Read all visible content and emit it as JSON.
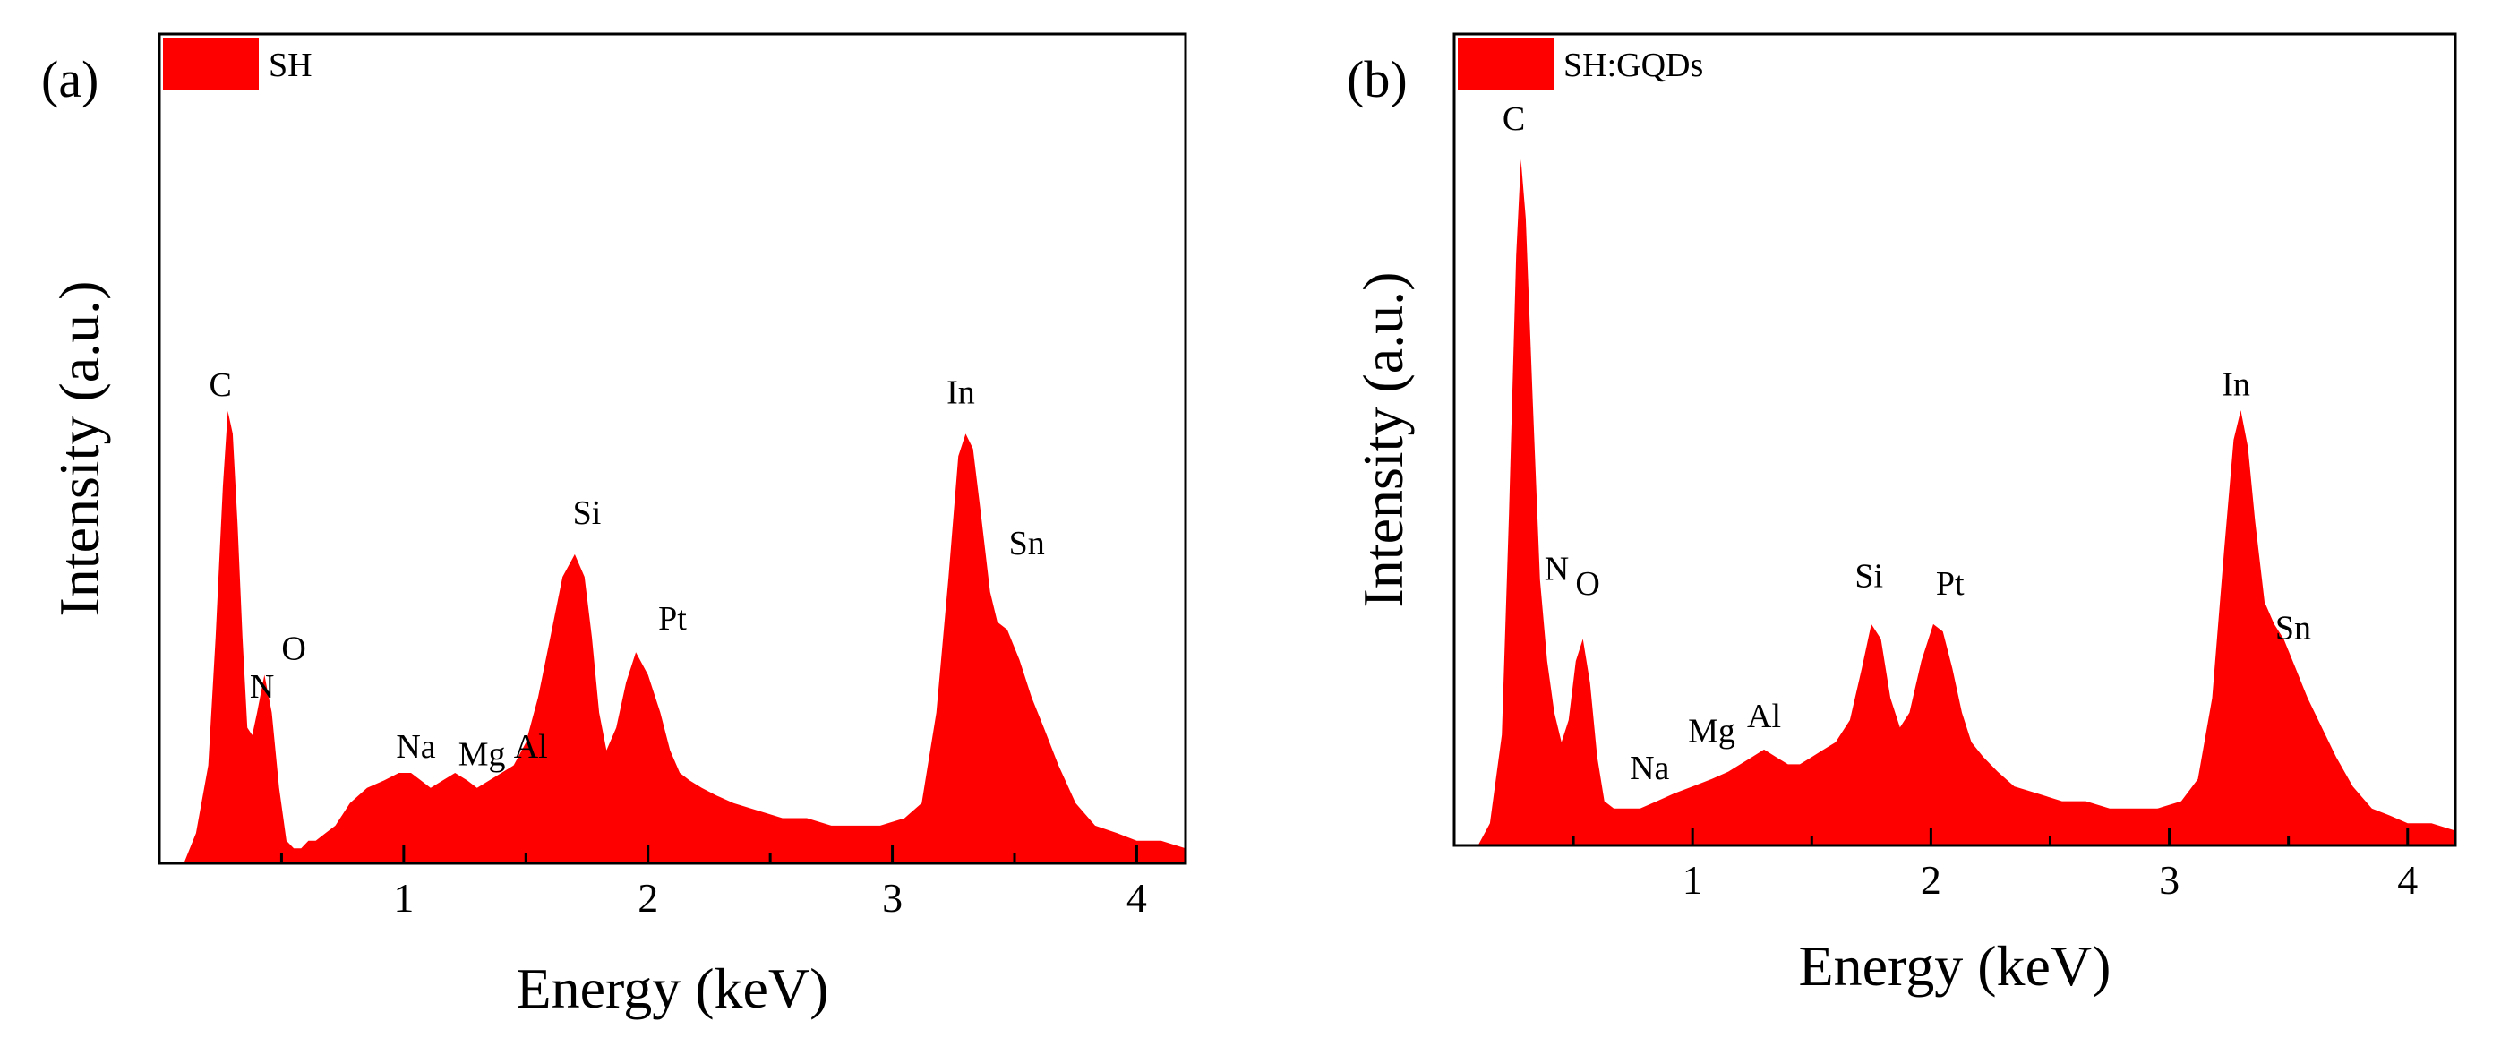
{
  "figure": {
    "colors": {
      "fill": "#ff0000",
      "axis": "#000000",
      "background": "#ffffff"
    }
  },
  "chart_data": [
    {
      "type": "area",
      "panel_label": "(a)",
      "title": "",
      "legend": {
        "label": "SH",
        "placement": "top-left"
      },
      "xlabel": "Energy (keV)",
      "ylabel": "Intensity (a.u.)",
      "xlim": [
        0.0,
        4.2
      ],
      "ylim": [
        0,
        110
      ],
      "xticks": [
        1,
        2,
        3,
        4
      ],
      "xtick_labels": [
        "1",
        "2",
        "3",
        "4"
      ],
      "yticks_visible": false,
      "grid": false,
      "series": [
        {
          "name": "SH",
          "x": [
            0.1,
            0.15,
            0.2,
            0.23,
            0.26,
            0.28,
            0.3,
            0.32,
            0.34,
            0.36,
            0.38,
            0.4,
            0.43,
            0.46,
            0.49,
            0.52,
            0.55,
            0.58,
            0.61,
            0.64,
            0.68,
            0.72,
            0.78,
            0.85,
            0.92,
            0.98,
            1.03,
            1.07,
            1.11,
            1.16,
            1.21,
            1.26,
            1.3,
            1.35,
            1.4,
            1.45,
            1.5,
            1.55,
            1.6,
            1.65,
            1.7,
            1.74,
            1.77,
            1.8,
            1.83,
            1.87,
            1.91,
            1.95,
            2.0,
            2.05,
            2.09,
            2.13,
            2.17,
            2.22,
            2.28,
            2.35,
            2.45,
            2.55,
            2.65,
            2.75,
            2.85,
            2.95,
            3.05,
            3.12,
            3.18,
            3.23,
            3.27,
            3.3,
            3.33,
            3.36,
            3.4,
            3.43,
            3.47,
            3.52,
            3.57,
            3.62,
            3.68,
            3.75,
            3.83,
            3.92,
            4.0,
            4.1,
            4.2
          ],
          "values": [
            0,
            4,
            13,
            30,
            50,
            60,
            57,
            45,
            30,
            18,
            17,
            20,
            25,
            20,
            10,
            3,
            2,
            2,
            3,
            3,
            4,
            5,
            8,
            10,
            11,
            12,
            12,
            11,
            10,
            11,
            12,
            11,
            10,
            11,
            12,
            13,
            16,
            22,
            30,
            38,
            41,
            38,
            30,
            20,
            15,
            18,
            24,
            28,
            25,
            20,
            15,
            12,
            11,
            10,
            9,
            8,
            7,
            6,
            6,
            5,
            5,
            5,
            6,
            8,
            20,
            38,
            54,
            57,
            55,
            47,
            36,
            32,
            31,
            27,
            22,
            18,
            13,
            8,
            5,
            4,
            3,
            3,
            2
          ]
        }
      ],
      "annotations": [
        {
          "text": "C",
          "x": 0.25,
          "y": 62
        },
        {
          "text": "N",
          "x": 0.42,
          "y": 22
        },
        {
          "text": "O",
          "x": 0.55,
          "y": 27
        },
        {
          "text": "Na",
          "x": 1.05,
          "y": 14
        },
        {
          "text": "Mg",
          "x": 1.32,
          "y": 13
        },
        {
          "text": "Al",
          "x": 1.52,
          "y": 14
        },
        {
          "text": "Si",
          "x": 1.75,
          "y": 45
        },
        {
          "text": "Pt",
          "x": 2.1,
          "y": 31
        },
        {
          "text": "In",
          "x": 3.28,
          "y": 61
        },
        {
          "text": "Sn",
          "x": 3.55,
          "y": 41
        }
      ]
    },
    {
      "type": "area",
      "panel_label": "(b)",
      "title": "",
      "legend": {
        "label": "SH:GQDs",
        "placement": "top-left"
      },
      "xlabel": "Energy (keV)",
      "ylabel": "Intensity (a.u.)",
      "xlim": [
        0.0,
        4.2
      ],
      "ylim": [
        0,
        110
      ],
      "xticks": [
        1,
        2,
        3,
        4
      ],
      "xtick_labels": [
        "1",
        "2",
        "3",
        "4"
      ],
      "yticks_visible": false,
      "grid": false,
      "series": [
        {
          "name": "SH:GQDs",
          "x": [
            0.1,
            0.15,
            0.2,
            0.23,
            0.26,
            0.28,
            0.3,
            0.33,
            0.36,
            0.39,
            0.42,
            0.45,
            0.48,
            0.51,
            0.54,
            0.57,
            0.6,
            0.63,
            0.67,
            0.72,
            0.78,
            0.85,
            0.92,
            1.0,
            1.08,
            1.15,
            1.2,
            1.25,
            1.3,
            1.35,
            1.4,
            1.45,
            1.5,
            1.55,
            1.6,
            1.66,
            1.71,
            1.75,
            1.79,
            1.83,
            1.87,
            1.91,
            1.96,
            2.01,
            2.05,
            2.09,
            2.13,
            2.17,
            2.22,
            2.28,
            2.35,
            2.45,
            2.55,
            2.65,
            2.75,
            2.85,
            2.95,
            3.05,
            3.12,
            3.18,
            3.23,
            3.27,
            3.3,
            3.33,
            3.36,
            3.4,
            3.44,
            3.48,
            3.53,
            3.58,
            3.64,
            3.7,
            3.77,
            3.85,
            3.93,
            4.0,
            4.1,
            4.2
          ],
          "values": [
            0,
            3,
            15,
            45,
            80,
            93,
            85,
            60,
            36,
            25,
            18,
            14,
            17,
            25,
            28,
            22,
            12,
            6,
            5,
            5,
            5,
            6,
            7,
            8,
            9,
            10,
            11,
            12,
            13,
            12,
            11,
            11,
            12,
            13,
            14,
            17,
            24,
            30,
            28,
            20,
            16,
            18,
            25,
            30,
            29,
            24,
            18,
            14,
            12,
            10,
            8,
            7,
            6,
            6,
            5,
            5,
            5,
            6,
            9,
            20,
            40,
            55,
            59,
            54,
            44,
            33,
            30,
            28,
            24,
            20,
            16,
            12,
            8,
            5,
            4,
            3,
            3,
            2
          ]
        }
      ],
      "annotations": [
        {
          "text": "C",
          "x": 0.25,
          "y": 97
        },
        {
          "text": "N",
          "x": 0.43,
          "y": 36
        },
        {
          "text": "O",
          "x": 0.56,
          "y": 34
        },
        {
          "text": "Na",
          "x": 0.82,
          "y": 9
        },
        {
          "text": "Mg",
          "x": 1.08,
          "y": 14
        },
        {
          "text": "Al",
          "x": 1.3,
          "y": 16
        },
        {
          "text": "Si",
          "x": 1.74,
          "y": 35
        },
        {
          "text": "Pt",
          "x": 2.08,
          "y": 34
        },
        {
          "text": "In",
          "x": 3.28,
          "y": 61
        },
        {
          "text": "Sn",
          "x": 3.52,
          "y": 28
        }
      ]
    }
  ]
}
